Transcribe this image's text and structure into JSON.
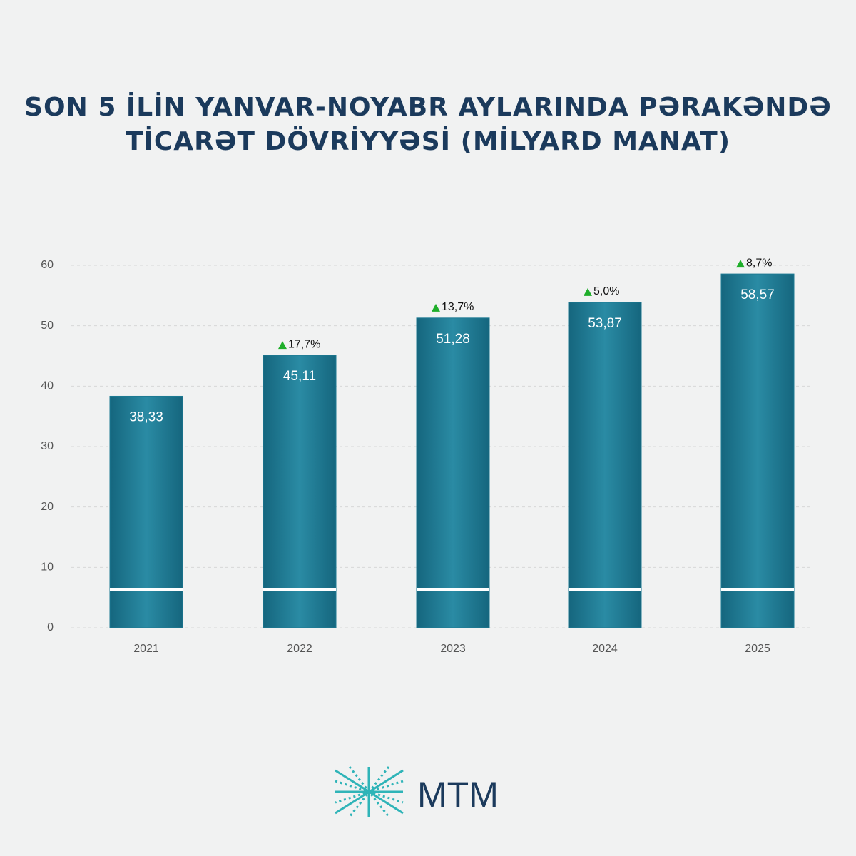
{
  "chart_data": {
    "type": "bar",
    "title": [
      "SON 5 İLİN YANVAR-NOYABR AYLARINDA PƏRAKƏNDƏ",
      "TİCARƏT DÖVRİYYƏSİ (MİLYARD MANAT)"
    ],
    "categories": [
      "2021",
      "2022",
      "2023",
      "2024",
      "2025"
    ],
    "values": [
      38.33,
      45.11,
      51.28,
      53.87,
      58.57
    ],
    "value_labels": [
      "38,33",
      "45,11",
      "51,28",
      "53,87",
      "58,57"
    ],
    "growth_labels": [
      null,
      "17,7%",
      "13,7%",
      "5,0%",
      "8,7%"
    ],
    "color": "#1d7a93",
    "ylim": [
      0,
      60
    ],
    "yticks": [
      0,
      10,
      20,
      30,
      40,
      50,
      60
    ],
    "grid": true
  },
  "logo": "MTM"
}
